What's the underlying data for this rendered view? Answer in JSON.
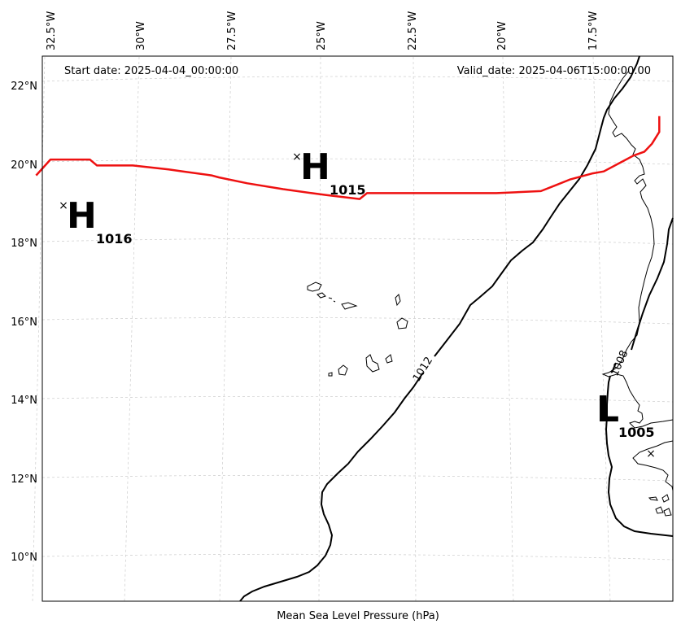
{
  "header": {
    "start_date": "Start date: 2025-04-04_00:00:00",
    "valid_date": "Valid_date: 2025-04-06T15:00:00.00"
  },
  "xlabel": "Mean Sea Level Pressure (hPa)",
  "map": {
    "lon_ticks": [
      "32.5°W",
      "30°W",
      "27.5°W",
      "25°W",
      "22.5°W",
      "20°W",
      "17.5°W"
    ],
    "lat_ticks": [
      "22°N",
      "20°N",
      "18°N",
      "16°N",
      "14°N",
      "12°N",
      "10°N"
    ],
    "gridlines": true,
    "colors": {
      "track": "#ee1111",
      "isobar": "#000000",
      "coast": "#000000",
      "grid": "#cccccc"
    }
  },
  "systems": [
    {
      "type": "H",
      "pressure": "1016"
    },
    {
      "type": "H",
      "pressure": "1015"
    },
    {
      "type": "L",
      "pressure": "1005"
    }
  ],
  "contour_labels": [
    "1012",
    "1008"
  ],
  "track": {
    "name": "",
    "points": [
      [
        -32.9,
        19.7
      ],
      [
        -32.5,
        20.1
      ],
      [
        -31.4,
        20.1
      ],
      [
        -31.2,
        19.95
      ],
      [
        -30.2,
        19.95
      ],
      [
        -29.2,
        19.85
      ],
      [
        -28.8,
        19.8
      ],
      [
        -28.0,
        19.7
      ],
      [
        -27.8,
        19.65
      ],
      [
        -27.0,
        19.5
      ],
      [
        -26.0,
        19.35
      ],
      [
        -25.2,
        19.25
      ],
      [
        -24.8,
        19.2
      ],
      [
        -23.9,
        19.1
      ],
      [
        -23.7,
        19.25
      ],
      [
        -22.0,
        19.25
      ],
      [
        -20.2,
        19.25
      ],
      [
        -19.0,
        19.3
      ],
      [
        -18.6,
        19.45
      ],
      [
        -18.2,
        19.6
      ],
      [
        -17.6,
        19.75
      ],
      [
        -17.3,
        19.8
      ],
      [
        -16.8,
        20.05
      ],
      [
        -16.5,
        20.2
      ],
      [
        -16.2,
        20.3
      ],
      [
        -16.0,
        20.5
      ],
      [
        -15.8,
        20.8
      ],
      [
        -15.8,
        21.2
      ]
    ]
  }
}
